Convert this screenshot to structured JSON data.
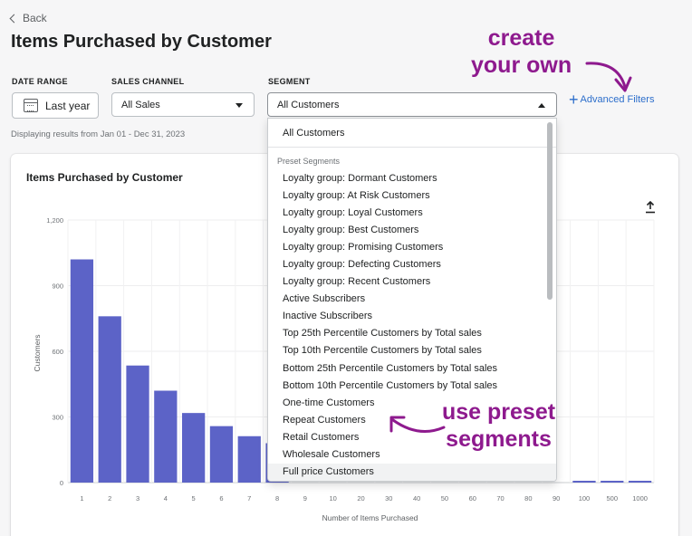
{
  "nav": {
    "back_label": "Back"
  },
  "page": {
    "title": "Items Purchased by Customer"
  },
  "filters": {
    "date_range": {
      "label": "DATE RANGE",
      "value": "Last year"
    },
    "sales_channel": {
      "label": "SALES CHANNEL",
      "value": "All Sales"
    },
    "segment": {
      "label": "SEGMENT",
      "value": "All Customers"
    },
    "advanced_label": "Advanced Filters"
  },
  "display_note": "Displaying results from Jan 01 - Dec 31, 2023",
  "dropdown": {
    "first": "All Customers",
    "section_label": "Preset Segments",
    "items": [
      "Loyalty group: Dormant Customers",
      "Loyalty group: At Risk Customers",
      "Loyalty group: Loyal Customers",
      "Loyalty group: Best Customers",
      "Loyalty group: Promising Customers",
      "Loyalty group: Defecting Customers",
      "Loyalty group: Recent Customers",
      "Active Subscribers",
      "Inactive Subscribers",
      "Top 25th Percentile Customers by Total sales",
      "Top 10th Percentile Customers by Total sales",
      "Bottom 25th Percentile Customers by Total sales",
      "Bottom 10th Percentile Customers by Total sales",
      "One-time Customers",
      "Repeat Customers",
      "Retail Customers",
      "Wholesale Customers",
      "Full price Customers"
    ]
  },
  "annotations": {
    "create": [
      "create",
      "your own"
    ],
    "preset": [
      "use preset",
      "segments"
    ],
    "color": "#8e1a8e"
  },
  "chart_data": {
    "type": "bar",
    "title": "Items Purchased by Customer",
    "xlabel": "Number of Items Purchased",
    "ylabel": "Customers",
    "categories": [
      "1",
      "2",
      "3",
      "4",
      "5",
      "6",
      "7",
      "8",
      "9",
      "10",
      "20",
      "30",
      "40",
      "50",
      "60",
      "70",
      "80",
      "90",
      "100",
      "500",
      "1000"
    ],
    "values": [
      1020,
      760,
      535,
      420,
      318,
      258,
      212,
      180,
      0,
      0,
      0,
      0,
      0,
      0,
      0,
      0,
      0,
      0,
      4,
      3,
      2
    ],
    "yticks": [
      "0",
      "300",
      "600",
      "900",
      "1,200"
    ],
    "ylim": [
      0,
      1200
    ],
    "bar_color": "#5c63c7",
    "grid": true
  }
}
